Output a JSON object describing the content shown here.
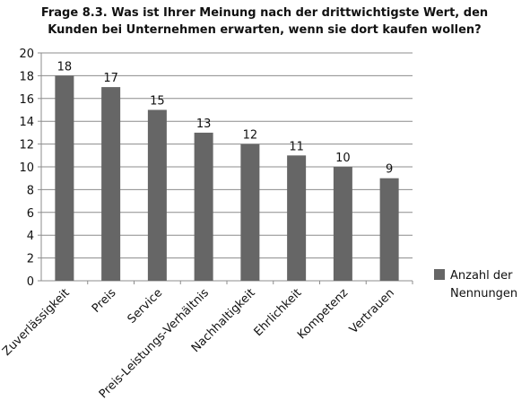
{
  "chart_data": {
    "type": "bar",
    "title": "Frage 8.3. Was ist Ihrer Meinung nach der drittwichtigste Wert, den Kunden bei Unternehmen erwarten, wenn sie dort kaufen wollen?",
    "categories": [
      "Zuverlässigkeit",
      "Preis",
      "Service",
      "Preis-Leistungs-Verhältnis",
      "Nachhaltigkeit",
      "Ehrlichkeit",
      "Kompetenz",
      "Vertrauen"
    ],
    "series": [
      {
        "name": "Anzahl der Nennungen",
        "color": "#666666",
        "values": [
          18,
          17,
          15,
          13,
          12,
          11,
          10,
          9
        ]
      }
    ],
    "ylim": [
      0,
      20
    ],
    "yticks": [
      0,
      2,
      4,
      6,
      8,
      10,
      12,
      14,
      16,
      18,
      20
    ],
    "grid": true,
    "legend": "right"
  }
}
